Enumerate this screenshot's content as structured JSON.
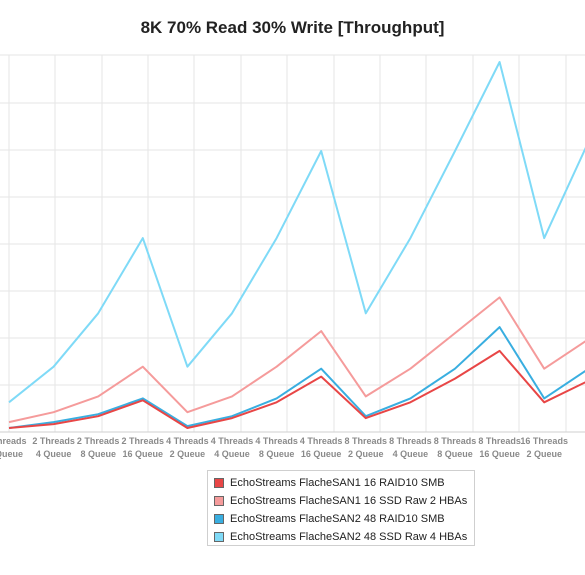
{
  "chart_data": {
    "type": "line",
    "title": "8K 70% Read 30% Write [Throughput]",
    "x": [
      [
        "Threads",
        "Queue"
      ],
      [
        "2 Threads",
        "4 Queue"
      ],
      [
        "2 Threads",
        "8 Queue"
      ],
      [
        "2 Threads",
        "16 Queue"
      ],
      [
        "4 Threads",
        "2 Queue"
      ],
      [
        "4 Threads",
        "4 Queue"
      ],
      [
        "4 Threads",
        "8 Queue"
      ],
      [
        "4 Threads",
        "16 Queue"
      ],
      [
        "8 Threads",
        "2 Queue"
      ],
      [
        "8 Threads",
        "4 Queue"
      ],
      [
        "8 Threads",
        "8 Queue"
      ],
      [
        "8 Threads",
        "16 Queue"
      ],
      [
        "16 Threads",
        "2 Queue"
      ],
      [
        "",
        ""
      ]
    ],
    "ylim": [
      0,
      9.4
    ],
    "grid": true,
    "legend_position": "bottom",
    "series": [
      {
        "name": "EchoStreams FlacheSAN1 16 RAID10 SMB",
        "color": "#e84646",
        "values": [
          0.1,
          0.2,
          0.4,
          0.8,
          0.1,
          0.35,
          0.75,
          1.4,
          0.35,
          0.75,
          1.35,
          2.05,
          0.75,
          1.3
        ]
      },
      {
        "name": "EchoStreams FlacheSAN1 16 SSD Raw 2 HBAs",
        "color": "#f59b9b",
        "values": [
          0.25,
          0.5,
          0.9,
          1.65,
          0.5,
          0.9,
          1.65,
          2.55,
          0.9,
          1.6,
          2.5,
          3.4,
          1.6,
          2.35
        ]
      },
      {
        "name": "EchoStreams FlacheSAN2 48 RAID10 SMB",
        "color": "#39aee0",
        "values": [
          0.1,
          0.25,
          0.45,
          0.85,
          0.15,
          0.4,
          0.85,
          1.6,
          0.4,
          0.85,
          1.6,
          2.65,
          0.85,
          1.6
        ]
      },
      {
        "name": "EchoStreams FlacheSAN2 48 SSD Raw 4 HBAs",
        "color": "#7fdaf7",
        "values": [
          0.75,
          1.65,
          3.0,
          4.9,
          1.65,
          3.0,
          4.9,
          7.1,
          3.0,
          4.9,
          7.1,
          9.35,
          4.9,
          7.35
        ]
      }
    ]
  }
}
